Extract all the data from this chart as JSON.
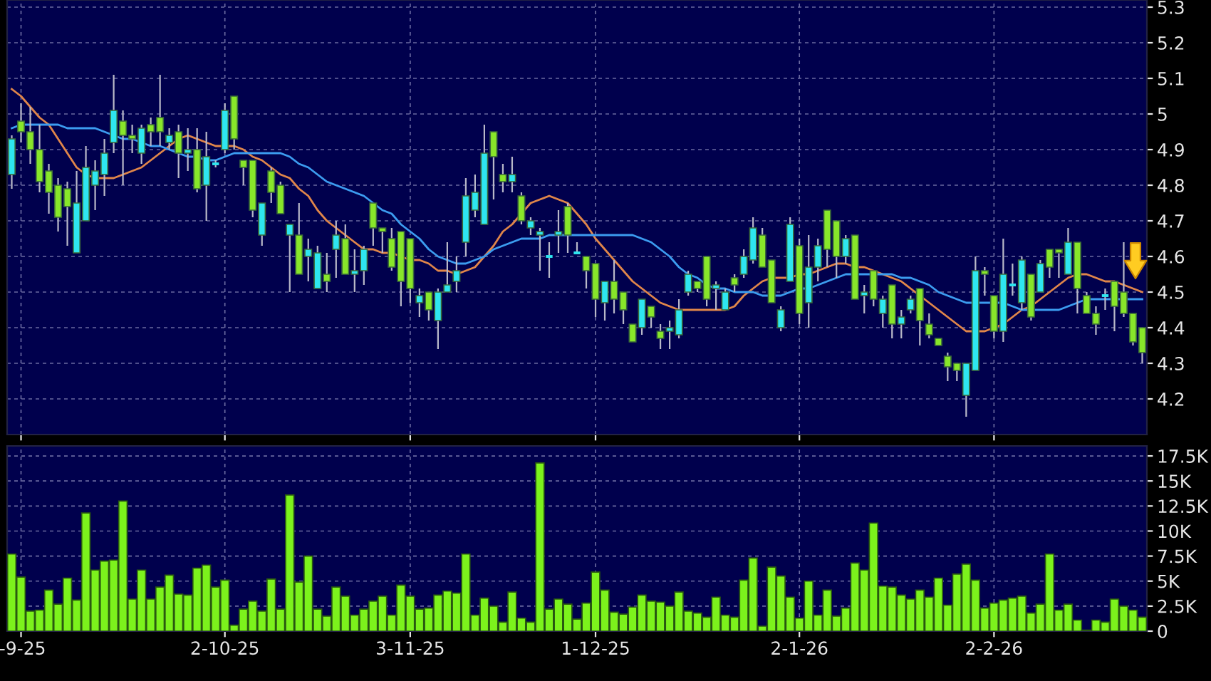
{
  "chart_data": [
    {
      "type": "candlestick",
      "categories": [
        null,
        null,
        null,
        null,
        null,
        null,
        null,
        null,
        null,
        null,
        null,
        null,
        null,
        null,
        null,
        null,
        null,
        null,
        null,
        null,
        null,
        null,
        null,
        null,
        null,
        null,
        null,
        null,
        null,
        null,
        null,
        null,
        null,
        null,
        null,
        null,
        null,
        null,
        null,
        null,
        null,
        null,
        null,
        null,
        null,
        null,
        null,
        null,
        null,
        null,
        null,
        null,
        null,
        null,
        null,
        null,
        null,
        null,
        null,
        null,
        null,
        null,
        null,
        null,
        null,
        null,
        null,
        null,
        null,
        null,
        null,
        null,
        null,
        null,
        null,
        null,
        null,
        null,
        null,
        null,
        null,
        null,
        null,
        null,
        null,
        null,
        null,
        null,
        null,
        null,
        null,
        null,
        null,
        null,
        null,
        null,
        null,
        null,
        null,
        null,
        null,
        null,
        null,
        null,
        null,
        null,
        null,
        null,
        null,
        null,
        null,
        null,
        null,
        null,
        null,
        null,
        null,
        null,
        null,
        null,
        null,
        null,
        null
      ],
      "ohlc": [
        [
          4.83,
          4.94,
          4.79,
          4.93
        ],
        [
          4.98,
          5.03,
          4.92,
          4.95
        ],
        [
          4.95,
          5.02,
          4.86,
          4.9
        ],
        [
          4.9,
          4.97,
          4.78,
          4.81
        ],
        [
          4.84,
          4.86,
          4.72,
          4.78
        ],
        [
          4.8,
          4.82,
          4.67,
          4.71
        ],
        [
          4.79,
          4.81,
          4.63,
          4.74
        ],
        [
          4.61,
          4.84,
          4.61,
          4.75
        ],
        [
          4.7,
          4.91,
          4.7,
          4.85
        ],
        [
          4.8,
          4.87,
          4.73,
          4.84
        ],
        [
          4.83,
          4.93,
          4.77,
          4.89
        ],
        [
          4.92,
          5.11,
          4.89,
          5.01
        ],
        [
          4.98,
          5.01,
          4.8,
          4.94
        ],
        [
          4.94,
          4.97,
          4.89,
          4.93
        ],
        [
          4.89,
          4.97,
          4.86,
          4.96
        ],
        [
          4.97,
          4.99,
          4.91,
          4.95
        ],
        [
          4.99,
          5.11,
          4.91,
          4.95
        ],
        [
          4.92,
          4.96,
          4.9,
          4.94
        ],
        [
          4.95,
          4.97,
          4.82,
          4.89
        ],
        [
          4.89,
          4.96,
          4.84,
          4.9
        ],
        [
          4.9,
          4.96,
          4.78,
          4.79
        ],
        [
          4.8,
          4.95,
          4.7,
          4.88
        ],
        [
          4.86,
          4.87,
          4.85,
          4.86
        ],
        [
          4.9,
          5.03,
          4.89,
          5.01
        ],
        [
          5.05,
          5.05,
          4.9,
          4.93
        ],
        [
          4.87,
          4.87,
          4.8,
          4.85
        ],
        [
          4.87,
          4.87,
          4.71,
          4.73
        ],
        [
          4.66,
          4.75,
          4.63,
          4.75
        ],
        [
          4.84,
          4.85,
          4.75,
          4.78
        ],
        [
          4.8,
          4.81,
          4.72,
          4.72
        ],
        [
          4.66,
          4.69,
          4.5,
          4.69
        ],
        [
          4.66,
          4.75,
          4.55,
          4.55
        ],
        [
          4.6,
          4.65,
          4.53,
          4.62
        ],
        [
          4.51,
          4.63,
          4.51,
          4.61
        ],
        [
          4.55,
          4.61,
          4.5,
          4.53
        ],
        [
          4.62,
          4.7,
          4.54,
          4.66
        ],
        [
          4.65,
          4.69,
          4.55,
          4.55
        ],
        [
          4.55,
          4.62,
          4.5,
          4.56
        ],
        [
          4.56,
          4.63,
          4.52,
          4.62
        ],
        [
          4.75,
          4.75,
          4.63,
          4.68
        ],
        [
          4.68,
          4.68,
          4.61,
          4.67
        ],
        [
          4.65,
          4.68,
          4.56,
          4.57
        ],
        [
          4.67,
          4.67,
          4.46,
          4.53
        ],
        [
          4.65,
          4.65,
          4.47,
          4.51
        ],
        [
          4.47,
          4.51,
          4.43,
          4.49
        ],
        [
          4.5,
          4.5,
          4.42,
          4.45
        ],
        [
          4.42,
          4.51,
          4.34,
          4.5
        ],
        [
          4.5,
          4.64,
          4.5,
          4.52
        ],
        [
          4.53,
          4.6,
          4.5,
          4.56
        ],
        [
          4.64,
          4.82,
          4.6,
          4.77
        ],
        [
          4.73,
          4.83,
          4.71,
          4.78
        ],
        [
          4.69,
          4.97,
          4.69,
          4.89
        ],
        [
          4.95,
          4.95,
          4.76,
          4.88
        ],
        [
          4.83,
          4.86,
          4.78,
          4.81
        ],
        [
          4.81,
          4.88,
          4.78,
          4.83
        ],
        [
          4.77,
          4.78,
          4.69,
          4.7
        ],
        [
          4.68,
          4.71,
          4.66,
          4.7
        ],
        [
          4.66,
          4.68,
          4.56,
          4.67
        ],
        [
          4.6,
          4.64,
          4.54,
          4.6
        ],
        [
          4.66,
          4.73,
          4.61,
          4.67
        ],
        [
          4.74,
          4.75,
          4.61,
          4.66
        ],
        [
          4.61,
          4.64,
          4.61,
          4.61
        ],
        [
          4.6,
          4.6,
          4.51,
          4.56
        ],
        [
          4.58,
          4.58,
          4.43,
          4.48
        ],
        [
          4.47,
          4.53,
          4.42,
          4.53
        ],
        [
          4.53,
          4.59,
          4.44,
          4.48
        ],
        [
          4.5,
          4.5,
          4.41,
          4.45
        ],
        [
          4.41,
          4.41,
          4.36,
          4.36
        ],
        [
          4.4,
          4.48,
          4.38,
          4.48
        ],
        [
          4.46,
          4.46,
          4.4,
          4.43
        ],
        [
          4.39,
          4.41,
          4.34,
          4.37
        ],
        [
          4.39,
          4.42,
          4.34,
          4.4
        ],
        [
          4.38,
          4.48,
          4.37,
          4.45
        ],
        [
          4.5,
          4.56,
          4.49,
          4.55
        ],
        [
          4.53,
          4.53,
          4.5,
          4.51
        ],
        [
          4.6,
          4.6,
          4.46,
          4.48
        ],
        [
          4.51,
          4.53,
          4.45,
          4.52
        ],
        [
          4.45,
          4.51,
          4.45,
          4.5
        ],
        [
          4.54,
          4.55,
          4.5,
          4.52
        ],
        [
          4.55,
          4.62,
          4.54,
          4.6
        ],
        [
          4.59,
          4.71,
          4.58,
          4.68
        ],
        [
          4.66,
          4.68,
          4.57,
          4.57
        ],
        [
          4.59,
          4.59,
          4.47,
          4.47
        ],
        [
          4.4,
          4.46,
          4.39,
          4.45
        ],
        [
          4.53,
          4.71,
          4.53,
          4.69
        ],
        [
          4.63,
          4.65,
          4.41,
          4.44
        ],
        [
          4.47,
          4.66,
          4.4,
          4.57
        ],
        [
          4.57,
          4.65,
          4.53,
          4.63
        ],
        [
          4.73,
          4.73,
          4.57,
          4.62
        ],
        [
          4.7,
          4.7,
          4.54,
          4.6
        ],
        [
          4.6,
          4.66,
          4.58,
          4.65
        ],
        [
          4.66,
          4.66,
          4.48,
          4.48
        ],
        [
          4.49,
          4.52,
          4.44,
          4.5
        ],
        [
          4.56,
          4.56,
          4.46,
          4.48
        ],
        [
          4.44,
          4.49,
          4.4,
          4.48
        ],
        [
          4.52,
          4.52,
          4.37,
          4.41
        ],
        [
          4.41,
          4.45,
          4.37,
          4.43
        ],
        [
          4.45,
          4.49,
          4.44,
          4.48
        ],
        [
          4.51,
          4.51,
          4.35,
          4.42
        ],
        [
          4.41,
          4.44,
          4.37,
          4.38
        ],
        [
          4.37,
          4.37,
          4.35,
          4.35
        ],
        [
          4.32,
          4.33,
          4.25,
          4.29
        ],
        [
          4.3,
          4.3,
          4.25,
          4.28
        ],
        [
          4.21,
          4.3,
          4.15,
          4.3
        ],
        [
          4.28,
          4.6,
          4.28,
          4.56
        ],
        [
          4.56,
          4.57,
          4.49,
          4.55
        ],
        [
          4.49,
          4.49,
          4.37,
          4.39
        ],
        [
          4.39,
          4.65,
          4.36,
          4.55
        ],
        [
          4.52,
          4.58,
          4.49,
          4.52
        ],
        [
          4.47,
          4.6,
          4.45,
          4.59
        ],
        [
          4.55,
          4.55,
          4.42,
          4.43
        ],
        [
          4.5,
          4.59,
          4.5,
          4.58
        ],
        [
          4.62,
          4.62,
          4.54,
          4.57
        ],
        [
          4.62,
          4.62,
          4.54,
          4.61
        ],
        [
          4.55,
          4.68,
          4.55,
          4.64
        ],
        [
          4.64,
          4.64,
          4.44,
          4.51
        ],
        [
          4.49,
          4.5,
          4.44,
          4.44
        ],
        [
          4.44,
          4.46,
          4.38,
          4.41
        ],
        [
          4.49,
          4.51,
          4.45,
          4.49
        ],
        [
          4.53,
          4.53,
          4.39,
          4.46
        ],
        [
          4.5,
          4.64,
          4.43,
          4.44
        ],
        [
          4.44,
          4.44,
          4.35,
          4.36
        ],
        [
          4.4,
          4.4,
          4.3,
          4.33
        ]
      ],
      "colors": [
        "#2ee6f0",
        "#88e62a",
        "#88e62a",
        "#88e62a",
        "#88e62a",
        "#88e62a",
        "#88e62a",
        "#2ee6f0",
        "#2ee6f0",
        "#2ee6f0",
        "#2ee6f0",
        "#2ee6f0",
        "#88e62a",
        "#88e62a",
        "#2ee6f0",
        "#88e62a",
        "#88e62a",
        "#2ee6f0",
        "#88e62a",
        "#2ee6f0",
        "#88e62a",
        "#2ee6f0",
        "#2ee6f0",
        "#2ee6f0",
        "#88e62a",
        "#88e62a",
        "#88e62a",
        "#2ee6f0",
        "#88e62a",
        "#88e62a",
        "#2ee6f0",
        "#88e62a",
        "#2ee6f0",
        "#2ee6f0",
        "#88e62a",
        "#2ee6f0",
        "#88e62a",
        "#2ee6f0",
        "#2ee6f0",
        "#88e62a",
        "#88e62a",
        "#88e62a",
        "#88e62a",
        "#88e62a",
        "#2ee6f0",
        "#88e62a",
        "#2ee6f0",
        "#2ee6f0",
        "#2ee6f0",
        "#2ee6f0",
        "#2ee6f0",
        "#2ee6f0",
        "#88e62a",
        "#88e62a",
        "#2ee6f0",
        "#88e62a",
        "#2ee6f0",
        "#2ee6f0",
        "#2ee6f0",
        "#2ee6f0",
        "#88e62a",
        "#2ee6f0",
        "#88e62a",
        "#88e62a",
        "#2ee6f0",
        "#88e62a",
        "#88e62a",
        "#88e62a",
        "#2ee6f0",
        "#88e62a",
        "#88e62a",
        "#2ee6f0",
        "#2ee6f0",
        "#2ee6f0",
        "#88e62a",
        "#88e62a",
        "#2ee6f0",
        "#2ee6f0",
        "#88e62a",
        "#2ee6f0",
        "#2ee6f0",
        "#88e62a",
        "#88e62a",
        "#2ee6f0",
        "#2ee6f0",
        "#88e62a",
        "#2ee6f0",
        "#2ee6f0",
        "#88e62a",
        "#88e62a",
        "#2ee6f0",
        "#88e62a",
        "#2ee6f0",
        "#88e62a",
        "#2ee6f0",
        "#88e62a",
        "#2ee6f0",
        "#2ee6f0",
        "#88e62a",
        "#88e62a",
        "#88e62a",
        "#88e62a",
        "#88e62a",
        "#2ee6f0",
        "#2ee6f0",
        "#88e62a",
        "#88e62a",
        "#2ee6f0",
        "#2ee6f0",
        "#2ee6f0",
        "#88e62a",
        "#2ee6f0",
        "#88e62a",
        "#88e62a",
        "#2ee6f0",
        "#88e62a",
        "#88e62a",
        "#88e62a",
        "#2ee6f0",
        "#88e62a",
        "#88e62a",
        "#88e62a",
        "#88e62a"
      ],
      "series": [
        {
          "type": "line",
          "color": "#e0864a",
          "values": [
            5.07,
            5.05,
            5.02,
            4.99,
            4.97,
            4.93,
            4.89,
            4.85,
            4.83,
            4.82,
            4.82,
            4.82,
            4.83,
            4.84,
            4.85,
            4.87,
            4.89,
            4.91,
            4.93,
            4.94,
            4.93,
            4.92,
            4.91,
            4.91,
            4.91,
            4.9,
            4.88,
            4.87,
            4.85,
            4.83,
            4.82,
            4.79,
            4.77,
            4.73,
            4.7,
            4.68,
            4.66,
            4.64,
            4.62,
            4.62,
            4.61,
            4.61,
            4.6,
            4.59,
            4.59,
            4.58,
            4.56,
            4.56,
            4.55,
            4.56,
            4.57,
            4.6,
            4.63,
            4.67,
            4.69,
            4.72,
            4.75,
            4.76,
            4.77,
            4.76,
            4.75,
            4.72,
            4.69,
            4.65,
            4.62,
            4.59,
            4.56,
            4.53,
            4.51,
            4.49,
            4.47,
            4.46,
            4.45,
            4.45,
            4.45,
            4.45,
            4.45,
            4.45,
            4.46,
            4.49,
            4.51,
            4.53,
            4.54,
            4.54,
            4.54,
            4.55,
            4.55,
            4.56,
            4.57,
            4.58,
            4.58,
            4.57,
            4.57,
            4.56,
            4.55,
            4.54,
            4.53,
            4.51,
            4.49,
            4.47,
            4.45,
            4.43,
            4.41,
            4.39,
            4.39,
            4.39,
            4.4,
            4.41,
            4.43,
            4.45,
            4.46,
            4.48,
            4.5,
            4.52,
            4.54,
            4.55,
            4.55,
            4.54,
            4.53,
            4.53,
            4.52,
            4.51,
            4.5
          ]
        },
        {
          "type": "line",
          "color": "#3c9cf0",
          "values": [
            4.96,
            4.97,
            4.97,
            4.97,
            4.97,
            4.97,
            4.96,
            4.96,
            4.96,
            4.96,
            4.95,
            4.94,
            4.93,
            4.93,
            4.92,
            4.91,
            4.91,
            4.9,
            4.89,
            4.88,
            4.88,
            4.87,
            4.87,
            4.88,
            4.89,
            4.89,
            4.89,
            4.89,
            4.89,
            4.89,
            4.88,
            4.86,
            4.85,
            4.83,
            4.81,
            4.8,
            4.79,
            4.78,
            4.77,
            4.75,
            4.73,
            4.72,
            4.69,
            4.67,
            4.65,
            4.62,
            4.6,
            4.59,
            4.58,
            4.58,
            4.59,
            4.6,
            4.62,
            4.63,
            4.64,
            4.65,
            4.65,
            4.65,
            4.66,
            4.66,
            4.66,
            4.66,
            4.66,
            4.66,
            4.66,
            4.66,
            4.66,
            4.66,
            4.65,
            4.64,
            4.62,
            4.6,
            4.57,
            4.55,
            4.54,
            4.52,
            4.51,
            4.51,
            4.5,
            4.5,
            4.5,
            4.49,
            4.49,
            4.49,
            4.5,
            4.51,
            4.51,
            4.52,
            4.53,
            4.54,
            4.55,
            4.55,
            4.55,
            4.55,
            4.55,
            4.55,
            4.54,
            4.54,
            4.53,
            4.52,
            4.5,
            4.49,
            4.48,
            4.47,
            4.47,
            4.47,
            4.47,
            4.47,
            4.46,
            4.45,
            4.45,
            4.45,
            4.45,
            4.45,
            4.46,
            4.47,
            4.48,
            4.48,
            4.48,
            4.48,
            4.48,
            4.48,
            4.48
          ]
        }
      ],
      "ylim": [
        4.1,
        5.32
      ],
      "yticks": [
        4.2,
        4.3,
        4.4,
        4.5,
        4.6,
        4.7,
        4.8,
        4.9,
        5,
        5.1,
        5.2,
        5.3
      ],
      "grid": true,
      "tick_labels": "y"
    },
    {
      "type": "bar",
      "categories": [
        null,
        "-9-25",
        null,
        null,
        null,
        null,
        null,
        null,
        null,
        null,
        null,
        null,
        null,
        null,
        null,
        null,
        null,
        null,
        null,
        null,
        null,
        null,
        null,
        "2-10-25",
        null,
        null,
        null,
        null,
        null,
        null,
        null,
        null,
        null,
        null,
        null,
        null,
        null,
        null,
        null,
        null,
        null,
        null,
        null,
        "3-11-25",
        null,
        null,
        null,
        null,
        null,
        null,
        null,
        null,
        null,
        null,
        null,
        null,
        null,
        null,
        null,
        null,
        null,
        null,
        null,
        "1-12-25",
        null,
        null,
        null,
        null,
        null,
        null,
        null,
        null,
        null,
        null,
        null,
        null,
        null,
        null,
        null,
        null,
        null,
        null,
        null,
        null,
        null,
        "2-1-26",
        null,
        null,
        null,
        null,
        null,
        null,
        null,
        null,
        null,
        null,
        null,
        null,
        null,
        null,
        null,
        null,
        null,
        null,
        null,
        null,
        "2-2-26",
        null,
        null,
        null,
        null,
        null,
        null,
        null,
        null,
        null,
        null,
        null,
        null,
        null,
        null,
        null,
        null
      ],
      "values": [
        7700,
        5400,
        2000,
        2100,
        4100,
        2700,
        5300,
        3100,
        11800,
        6100,
        7000,
        7100,
        13000,
        3200,
        6100,
        3200,
        4400,
        5600,
        3700,
        3600,
        6300,
        6600,
        4400,
        5100,
        600,
        2200,
        3000,
        2000,
        5200,
        2200,
        13600,
        4900,
        7500,
        2200,
        1500,
        4400,
        3500,
        1600,
        2200,
        3000,
        3500,
        1600,
        4600,
        3500,
        2200,
        2300,
        3600,
        4000,
        3800,
        7700,
        1600,
        3300,
        2500,
        900,
        3900,
        1300,
        900,
        16800,
        2200,
        3200,
        2700,
        1200,
        2800,
        5900,
        4100,
        1900,
        1700,
        2400,
        3600,
        3000,
        2900,
        2500,
        3900,
        2000,
        1800,
        1400,
        3400,
        1600,
        1400,
        5100,
        7300,
        500,
        6400,
        5500,
        3400,
        1300,
        5000,
        1600,
        4100,
        1500,
        2300,
        6800,
        6100,
        10800,
        4500,
        4400,
        3600,
        3200,
        4100,
        3400,
        5300,
        2600,
        5700,
        6700,
        5100,
        2300,
        2800,
        3100,
        3300,
        3500,
        1800,
        2700,
        7700,
        2100,
        2700,
        1100,
        100,
        1100,
        900,
        3200,
        2500,
        2100,
        1400
      ],
      "color": "#7cf21c",
      "ylim": [
        0,
        18500
      ],
      "yticks": [
        0,
        {
          "value": 2500,
          "label": "2.5K"
        },
        {
          "value": 5000,
          "label": "5K"
        },
        {
          "value": 7500,
          "label": "7.5K"
        },
        {
          "value": 10000,
          "label": "10K"
        },
        {
          "value": 12500,
          "label": "12.5K"
        },
        {
          "value": 15000,
          "label": "15K"
        },
        {
          "value": 17500,
          "label": "17.5K"
        }
      ],
      "grid": true
    }
  ]
}
